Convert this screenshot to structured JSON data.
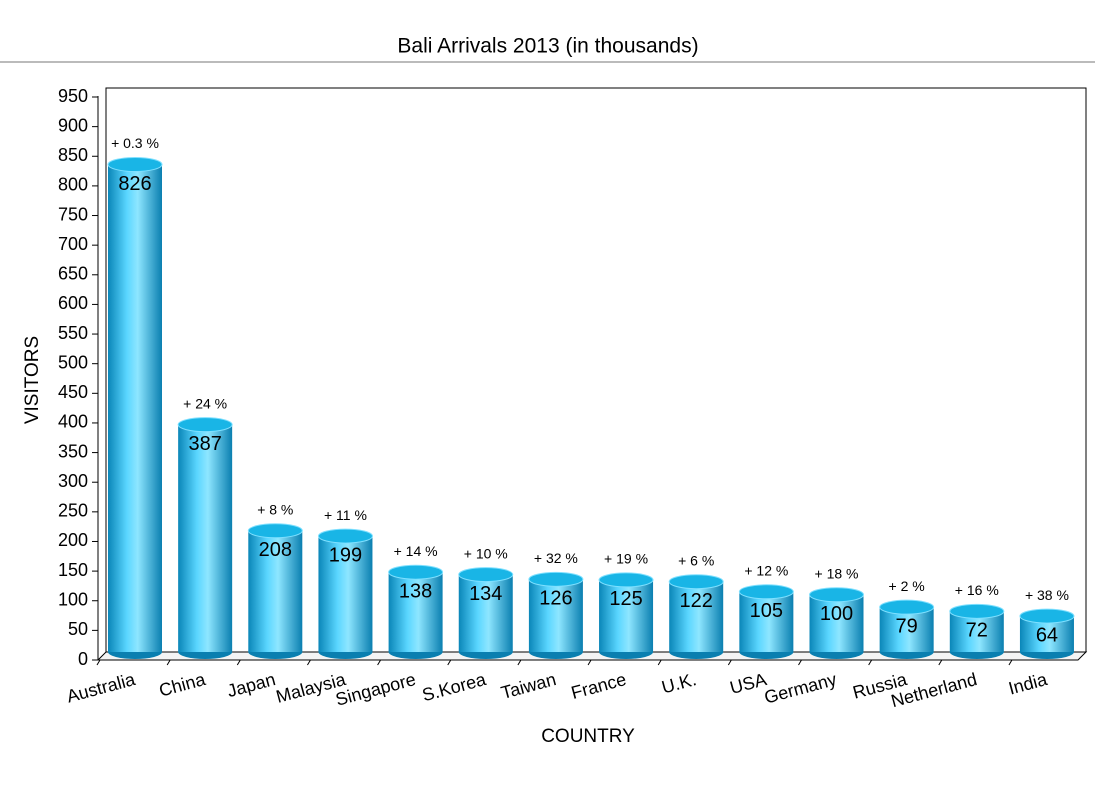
{
  "chart_data": {
    "type": "bar",
    "title": "Bali Arrivals 2013 (in thousands)",
    "x_label": "COUNTRY",
    "y_label": "VISITORS",
    "categories": [
      "Australia",
      "China",
      "Japan",
      "Malaysia",
      "Singapore",
      "S.Korea",
      "Taiwan",
      "France",
      "U.K.",
      "USA",
      "Germany",
      "Russia",
      "Netherland",
      "India"
    ],
    "values": [
      826,
      387,
      208,
      199,
      138,
      134,
      126,
      125,
      122,
      105,
      100,
      79,
      72,
      64
    ],
    "annotations": [
      "+ 0.3 %",
      "+ 24 %",
      "+ 8 %",
      "+ 11 %",
      "+ 14 %",
      "+ 10 %",
      "+ 32 %",
      "+ 19 %",
      "+ 6 %",
      "+ 12 %",
      "+ 18 %",
      "+ 2 %",
      "+ 16 %",
      "+ 38 %"
    ],
    "color": "#19b5e6",
    "ylim": [
      0,
      950
    ],
    "yticks": [
      0,
      50,
      100,
      150,
      200,
      250,
      300,
      350,
      400,
      450,
      500,
      550,
      600,
      650,
      700,
      750,
      800,
      850,
      900,
      950
    ],
    "grid": false
  }
}
